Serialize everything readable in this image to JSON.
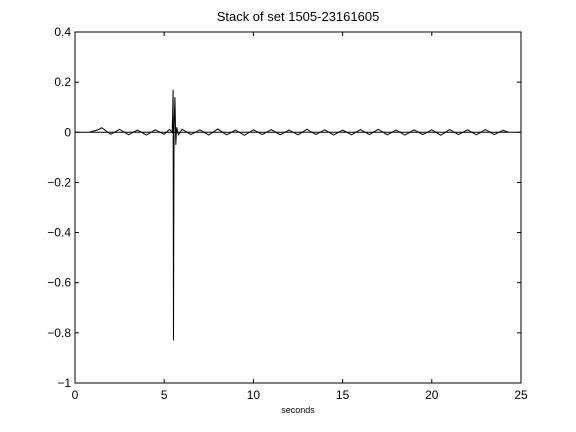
{
  "chart_data": {
    "type": "line",
    "title": "Stack of set 1505-23161605",
    "xlabel": "seconds",
    "ylabel": "",
    "xlim": [
      0,
      25
    ],
    "ylim": [
      -1,
      0.4
    ],
    "xticks": [
      0,
      5,
      10,
      15,
      20,
      25
    ],
    "xtick_labels": [
      "0",
      "5",
      "10",
      "15",
      "20",
      "25"
    ],
    "yticks": [
      0.4,
      0.2,
      0,
      -0.2,
      -0.4,
      -0.6,
      -0.8,
      -1
    ],
    "ytick_labels": [
      "0.4",
      "0.2",
      "0",
      "−0.2",
      "−0.4",
      "−0.6",
      "−0.8",
      "−1"
    ],
    "grid": false,
    "legend": "none",
    "series": [
      {
        "color": "#000000",
        "x": [
          0.8,
          1.3,
          1.5,
          2.0,
          2.5,
          3.0,
          3.5,
          4.0,
          4.5,
          5.0,
          5.3,
          5.45,
          5.5,
          5.52,
          5.55,
          5.6,
          5.65,
          5.7,
          5.8,
          6.0,
          6.5,
          7.0,
          7.5,
          8.0,
          8.5,
          9.0,
          9.5,
          10.0,
          10.5,
          11.0,
          11.5,
          12.0,
          12.5,
          13.0,
          13.5,
          14.0,
          14.5,
          15.0,
          15.5,
          16.0,
          16.5,
          17.0,
          17.5,
          18.0,
          18.5,
          19.0,
          19.5,
          20.0,
          20.5,
          21.0,
          21.5,
          22.0,
          22.5,
          23.0,
          23.5,
          24.0,
          24.3
        ],
        "y": [
          0.0,
          0.01,
          0.018,
          -0.008,
          0.012,
          -0.01,
          0.009,
          -0.011,
          0.01,
          -0.008,
          0.012,
          0.0,
          0.17,
          -0.83,
          0.0,
          0.14,
          -0.05,
          0.02,
          -0.01,
          0.012,
          -0.009,
          0.01,
          -0.011,
          0.013,
          -0.01,
          0.009,
          -0.012,
          0.01,
          -0.009,
          0.011,
          -0.01,
          0.009,
          -0.01,
          0.012,
          -0.009,
          0.01,
          -0.011,
          0.009,
          -0.01,
          0.011,
          -0.009,
          0.012,
          -0.01,
          0.009,
          -0.011,
          0.01,
          -0.009,
          0.01,
          -0.012,
          0.011,
          -0.009,
          0.01,
          -0.01,
          0.011,
          -0.009,
          0.008,
          0.0
        ]
      }
    ],
    "reference_lines": [
      {
        "y": 0
      }
    ]
  }
}
